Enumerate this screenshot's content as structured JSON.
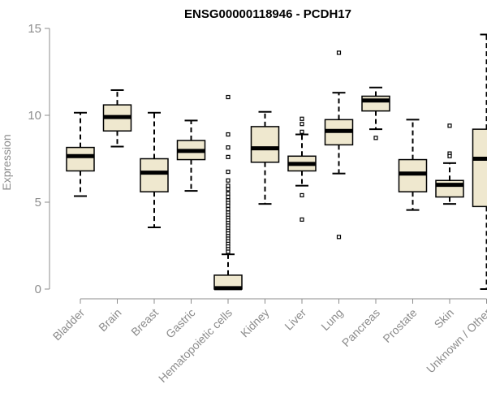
{
  "chart_data": {
    "type": "boxplot",
    "title": "ENSG00000118946 - PCDH17",
    "ylabel": "Expression",
    "xlabel": "",
    "ylim": [
      0,
      15
    ],
    "yticks": [
      0,
      5,
      10,
      15
    ],
    "grid": false,
    "colors": {
      "box_fill": "#efe8cf",
      "box_stroke": "#000000",
      "axis": "#8c8c8c",
      "tick_text": "#8c8c8c"
    },
    "categories": [
      "Bladder",
      "Brain",
      "Breast",
      "Gastric",
      "Hematopoietic cells",
      "Kidney",
      "Liver",
      "Lung",
      "Pancreas",
      "Prostate",
      "Skin",
      "Unknown / Other"
    ],
    "boxes": [
      {
        "category": "Bladder",
        "whisker_low": 5.35,
        "q1": 6.8,
        "median": 7.65,
        "q3": 8.15,
        "whisker_high": 10.15,
        "outliers": []
      },
      {
        "category": "Brain",
        "whisker_low": 8.2,
        "q1": 9.1,
        "median": 9.9,
        "q3": 10.6,
        "whisker_high": 11.45,
        "outliers": []
      },
      {
        "category": "Breast",
        "whisker_low": 3.55,
        "q1": 5.6,
        "median": 6.7,
        "q3": 7.5,
        "whisker_high": 10.15,
        "outliers": []
      },
      {
        "category": "Gastric",
        "whisker_low": 5.65,
        "q1": 7.45,
        "median": 7.95,
        "q3": 8.55,
        "whisker_high": 9.7,
        "outliers": []
      },
      {
        "category": "Hematopoietic cells",
        "whisker_low": 0.0,
        "q1": 0.0,
        "median": 0.05,
        "q3": 0.8,
        "whisker_high": 2.0,
        "outliers": [
          11.05,
          8.9,
          8.15,
          7.6,
          6.75,
          6.25,
          5.95,
          5.75,
          5.5,
          5.3,
          5.1,
          4.95,
          4.8,
          4.6,
          4.4,
          4.25,
          4.1,
          3.95,
          3.8,
          3.65,
          3.5,
          3.35,
          3.2,
          3.05,
          2.9,
          2.75,
          2.6,
          2.45,
          2.3,
          2.15
        ]
      },
      {
        "category": "Kidney",
        "whisker_low": 4.9,
        "q1": 7.3,
        "median": 8.1,
        "q3": 9.35,
        "whisker_high": 10.2,
        "outliers": []
      },
      {
        "category": "Liver",
        "whisker_low": 5.95,
        "q1": 6.8,
        "median": 7.2,
        "q3": 7.65,
        "whisker_high": 8.9,
        "outliers": [
          9.8,
          9.5,
          9.05,
          5.4,
          4.0
        ]
      },
      {
        "category": "Lung",
        "whisker_low": 6.65,
        "q1": 8.3,
        "median": 9.1,
        "q3": 9.75,
        "whisker_high": 11.3,
        "outliers": [
          13.6,
          3.0
        ]
      },
      {
        "category": "Pancreas",
        "whisker_low": 9.2,
        "q1": 10.25,
        "median": 10.85,
        "q3": 11.1,
        "whisker_high": 11.6,
        "outliers": [
          8.7
        ]
      },
      {
        "category": "Prostate",
        "whisker_low": 4.55,
        "q1": 5.6,
        "median": 6.65,
        "q3": 7.45,
        "whisker_high": 9.75,
        "outliers": []
      },
      {
        "category": "Skin",
        "whisker_low": 4.9,
        "q1": 5.3,
        "median": 6.0,
        "q3": 6.25,
        "whisker_high": 7.25,
        "outliers": [
          9.4,
          7.8,
          7.65
        ]
      },
      {
        "category": "Unknown / Other",
        "whisker_low": 0.0,
        "q1": 4.75,
        "median": 7.5,
        "q3": 9.2,
        "whisker_high": 14.65,
        "outliers": []
      }
    ]
  }
}
